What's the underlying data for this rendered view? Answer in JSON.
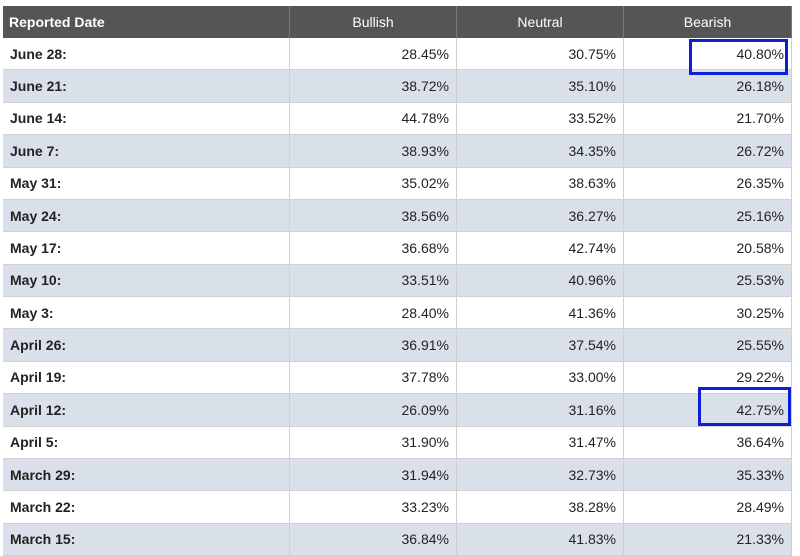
{
  "table": {
    "header": [
      "Reported Date",
      "Bullish",
      "Neutral",
      "Bearish"
    ],
    "rows": [
      [
        "June 28:",
        "28.45%",
        "30.75%",
        "40.80%"
      ],
      [
        "June 21:",
        "38.72%",
        "35.10%",
        "26.18%"
      ],
      [
        "June 14:",
        "44.78%",
        "33.52%",
        "21.70%"
      ],
      [
        "June 7:",
        "38.93%",
        "34.35%",
        "26.72%"
      ],
      [
        "May 31:",
        "35.02%",
        "38.63%",
        "26.35%"
      ],
      [
        "May 24:",
        "38.56%",
        "36.27%",
        "25.16%"
      ],
      [
        "May 17:",
        "36.68%",
        "42.74%",
        "20.58%"
      ],
      [
        "May 10:",
        "33.51%",
        "40.96%",
        "25.53%"
      ],
      [
        "May 3:",
        "28.40%",
        "41.36%",
        "30.25%"
      ],
      [
        "April 26:",
        "36.91%",
        "37.54%",
        "25.55%"
      ],
      [
        "April 19:",
        "37.78%",
        "33.00%",
        "29.22%"
      ],
      [
        "April 12:",
        "26.09%",
        "31.16%",
        "42.75%"
      ],
      [
        "April 5:",
        "31.90%",
        "31.47%",
        "36.64%"
      ],
      [
        "March 29:",
        "31.94%",
        "32.73%",
        "35.33%"
      ],
      [
        "March 22:",
        "33.23%",
        "38.28%",
        "28.49%"
      ],
      [
        "March 15:",
        "36.84%",
        "41.83%",
        "21.33%"
      ]
    ]
  }
}
